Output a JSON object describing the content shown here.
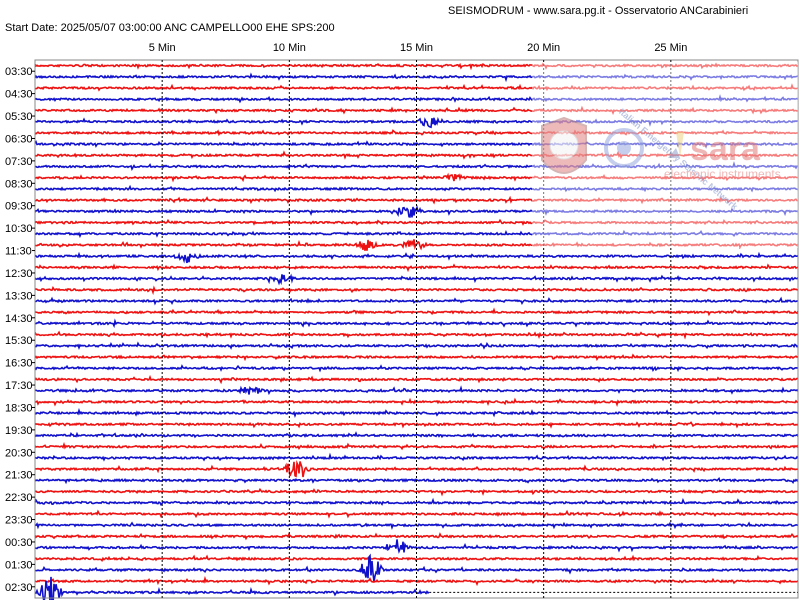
{
  "header": {
    "site": "SEISMODRUM - www.sara.pg.it - Osservatorio ANCarabinieri",
    "start": "Start Date: 2025/05/07 03:00:00 ANC CAMPELLO00 EHE  SPS:200"
  },
  "watermark": {
    "badge_text": "Italian Emergency Seismic Network",
    "logo_text": "sara",
    "logo_sub": "electronic instruments"
  },
  "colors": {
    "trace_a": "#ee1111",
    "trace_b": "#1111cc",
    "grid": "#000000",
    "frame": "#888888"
  },
  "chart_data": {
    "type": "line",
    "title": "",
    "x_label_top": [
      "5 Min",
      "10 Min",
      "15 Min",
      "20 Min",
      "25 Min"
    ],
    "x_minutes": [
      5,
      10,
      15,
      20,
      25
    ],
    "xlim": [
      0,
      30
    ],
    "row_labels": [
      "03:30",
      "04:30",
      "05:30",
      "06:30",
      "07:30",
      "08:30",
      "09:30",
      "10:30",
      "11:30",
      "12:30",
      "13:30",
      "14:30",
      "15:30",
      "16:30",
      "17:30",
      "18:30",
      "19:30",
      "20:30",
      "21:30",
      "22:30",
      "23:30",
      "00:30",
      "01:30",
      "02:30"
    ],
    "rows": 48,
    "last_row_end_minute": 15.5,
    "events": [
      {
        "row": 5,
        "minute": 15.5,
        "amp": 0.35
      },
      {
        "row": 10,
        "minute": 16.5,
        "amp": 0.25
      },
      {
        "row": 13,
        "minute": 14.7,
        "amp": 0.45
      },
      {
        "row": 16,
        "minute": 13.0,
        "amp": 0.35
      },
      {
        "row": 16,
        "minute": 14.9,
        "amp": 0.35
      },
      {
        "row": 17,
        "minute": 6.0,
        "amp": 0.4
      },
      {
        "row": 19,
        "minute": 9.7,
        "amp": 0.3
      },
      {
        "row": 29,
        "minute": 8.5,
        "amp": 0.3
      },
      {
        "row": 36,
        "minute": 10.3,
        "amp": 0.8
      },
      {
        "row": 43,
        "minute": 14.3,
        "amp": 0.6
      },
      {
        "row": 45,
        "minute": 13.2,
        "amp": 1.0
      },
      {
        "row": 47,
        "minute": 0.6,
        "amp": 1.0
      }
    ]
  }
}
